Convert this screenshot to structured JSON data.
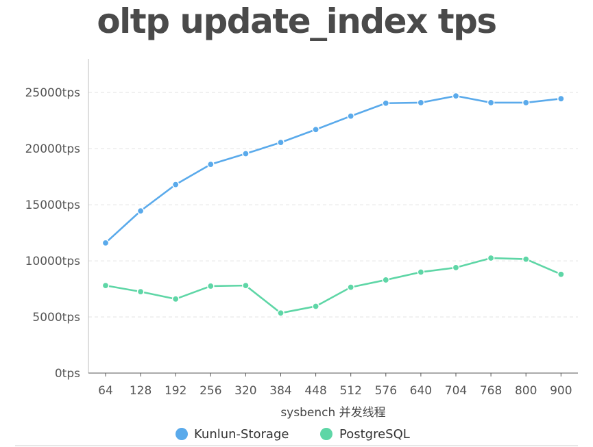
{
  "chart_data": {
    "type": "line",
    "title": "oltp update_index tps",
    "xlabel": "sysbench 并发线程",
    "ylabel": "",
    "categories": [
      "64",
      "128",
      "192",
      "256",
      "320",
      "384",
      "448",
      "512",
      "576",
      "640",
      "704",
      "768",
      "800",
      "900"
    ],
    "y_tick_labels": [
      "0tps",
      "5000tps",
      "10000tps",
      "15000tps",
      "20000tps",
      "25000tps"
    ],
    "y_ticks": [
      0,
      5000,
      10000,
      15000,
      20000,
      25000
    ],
    "ylim": [
      0,
      28000
    ],
    "grid": "horizontal dashed",
    "legend_position": "bottom",
    "series": [
      {
        "name": "Kunlun-Storage",
        "color": "#5aaaeb",
        "values": [
          11600,
          14450,
          16800,
          18600,
          19550,
          20550,
          21700,
          22900,
          24050,
          24100,
          24700,
          24100,
          24100,
          24450
        ]
      },
      {
        "name": "PostgreSQL",
        "color": "#5ed6a6",
        "values": [
          7800,
          7250,
          6600,
          7750,
          7800,
          5350,
          5950,
          7650,
          8300,
          9000,
          9400,
          10250,
          10150,
          8800
        ]
      }
    ]
  }
}
